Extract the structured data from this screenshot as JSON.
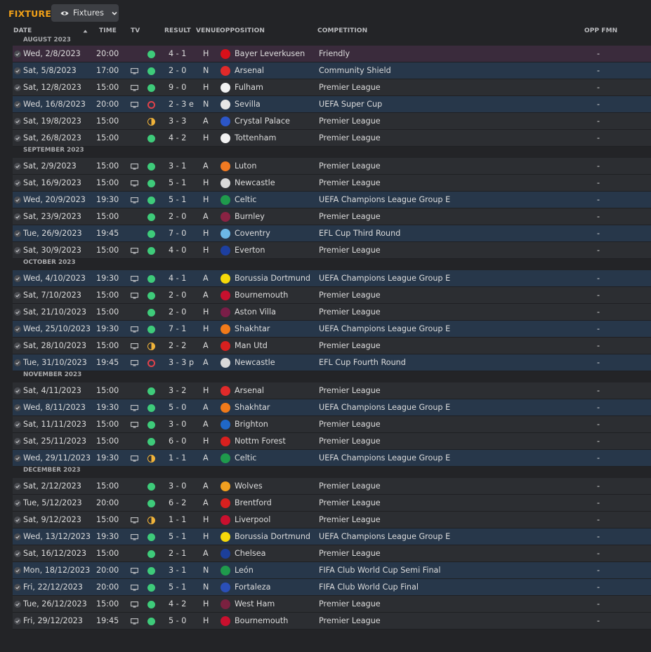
{
  "page": {
    "title": "FIXTURES",
    "view_label": "Fixtures"
  },
  "columns": {
    "date": "DATE",
    "time": "TIME",
    "tv": "TV",
    "result": "RESULT",
    "venue": "VENUE",
    "opposition": "OPPOSITION",
    "competition": "COMPETITION",
    "opp_fmn": "OPP FMN"
  },
  "colors": {
    "accent": "#f0a018",
    "win": "#3ecb7a",
    "draw": "#f0b33a",
    "loss": "#e0424a",
    "row": "#2c2e32",
    "row_competition": "#27374a",
    "row_friendly": "#3a2b3c"
  },
  "months": [
    {
      "label": "AUGUST 2023",
      "fixtures": [
        {
          "date": "Wed, 2/8/2023",
          "time": "20:00",
          "tv": false,
          "outcome": "win",
          "result": "4 - 1",
          "venue": "H",
          "opposition": "Bayer Leverkusen",
          "competition": "Friendly",
          "opp_fmn": "-",
          "style": "friendly",
          "crest": "#d8101a"
        },
        {
          "date": "Sat, 5/8/2023",
          "time": "17:00",
          "tv": true,
          "outcome": "win",
          "result": "2 - 0",
          "venue": "N",
          "opposition": "Arsenal",
          "competition": "Community Shield",
          "opp_fmn": "-",
          "style": "comp",
          "crest": "#e02a2a"
        },
        {
          "date": "Sat, 12/8/2023",
          "time": "15:00",
          "tv": true,
          "outcome": "win",
          "result": "9 - 0",
          "venue": "H",
          "opposition": "Fulham",
          "competition": "Premier League",
          "opp_fmn": "-",
          "style": "league",
          "crest": "#f2f2f2"
        },
        {
          "date": "Wed, 16/8/2023",
          "time": "20:00",
          "tv": true,
          "outcome": "loss",
          "result": "2 - 3 e",
          "venue": "N",
          "opposition": "Sevilla",
          "competition": "UEFA Super Cup",
          "opp_fmn": "-",
          "style": "comp",
          "crest": "#e6e6e6"
        },
        {
          "date": "Sat, 19/8/2023",
          "time": "15:00",
          "tv": false,
          "outcome": "draw",
          "result": "3 - 3",
          "venue": "A",
          "opposition": "Crystal Palace",
          "competition": "Premier League",
          "opp_fmn": "-",
          "style": "league",
          "crest": "#2c56c8"
        },
        {
          "date": "Sat, 26/8/2023",
          "time": "15:00",
          "tv": false,
          "outcome": "win",
          "result": "4 - 2",
          "venue": "H",
          "opposition": "Tottenham",
          "competition": "Premier League",
          "opp_fmn": "-",
          "style": "league",
          "crest": "#f2f2f2"
        }
      ]
    },
    {
      "label": "SEPTEMBER 2023",
      "fixtures": [
        {
          "date": "Sat, 2/9/2023",
          "time": "15:00",
          "tv": true,
          "outcome": "win",
          "result": "3 - 1",
          "venue": "A",
          "opposition": "Luton",
          "competition": "Premier League",
          "opp_fmn": "-",
          "style": "league",
          "crest": "#f07a22"
        },
        {
          "date": "Sat, 16/9/2023",
          "time": "15:00",
          "tv": true,
          "outcome": "win",
          "result": "5 - 1",
          "venue": "H",
          "opposition": "Newcastle",
          "competition": "Premier League",
          "opp_fmn": "-",
          "style": "league",
          "crest": "#d9d9d9"
        },
        {
          "date": "Wed, 20/9/2023",
          "time": "19:30",
          "tv": true,
          "outcome": "win",
          "result": "5 - 1",
          "venue": "H",
          "opposition": "Celtic",
          "competition": "UEFA Champions League Group E",
          "opp_fmn": "-",
          "style": "comp",
          "crest": "#1f9a4c"
        },
        {
          "date": "Sat, 23/9/2023",
          "time": "15:00",
          "tv": false,
          "outcome": "win",
          "result": "2 - 0",
          "venue": "A",
          "opposition": "Burnley",
          "competition": "Premier League",
          "opp_fmn": "-",
          "style": "league",
          "crest": "#8a2343"
        },
        {
          "date": "Tue, 26/9/2023",
          "time": "19:45",
          "tv": false,
          "outcome": "win",
          "result": "7 - 0",
          "venue": "H",
          "opposition": "Coventry",
          "competition": "EFL Cup Third Round",
          "opp_fmn": "-",
          "style": "comp",
          "crest": "#6cb8e6"
        },
        {
          "date": "Sat, 30/9/2023",
          "time": "15:00",
          "tv": true,
          "outcome": "win",
          "result": "4 - 0",
          "venue": "H",
          "opposition": "Everton",
          "competition": "Premier League",
          "opp_fmn": "-",
          "style": "league",
          "crest": "#1d3fa0"
        }
      ]
    },
    {
      "label": "OCTOBER 2023",
      "fixtures": [
        {
          "date": "Wed, 4/10/2023",
          "time": "19:30",
          "tv": true,
          "outcome": "win",
          "result": "4 - 1",
          "venue": "A",
          "opposition": "Borussia Dortmund",
          "competition": "UEFA Champions League Group E",
          "opp_fmn": "-",
          "style": "comp",
          "crest": "#f5d90a"
        },
        {
          "date": "Sat, 7/10/2023",
          "time": "15:00",
          "tv": true,
          "outcome": "win",
          "result": "2 - 0",
          "venue": "A",
          "opposition": "Bournemouth",
          "competition": "Premier League",
          "opp_fmn": "-",
          "style": "league",
          "crest": "#c8102e"
        },
        {
          "date": "Sat, 21/10/2023",
          "time": "15:00",
          "tv": false,
          "outcome": "win",
          "result": "2 - 0",
          "venue": "H",
          "opposition": "Aston Villa",
          "competition": "Premier League",
          "opp_fmn": "-",
          "style": "league",
          "crest": "#7a1e48"
        },
        {
          "date": "Wed, 25/10/2023",
          "time": "19:30",
          "tv": true,
          "outcome": "win",
          "result": "7 - 1",
          "venue": "H",
          "opposition": "Shakhtar",
          "competition": "UEFA Champions League Group E",
          "opp_fmn": "-",
          "style": "comp",
          "crest": "#f07a1a"
        },
        {
          "date": "Sat, 28/10/2023",
          "time": "15:00",
          "tv": true,
          "outcome": "draw",
          "result": "2 - 2",
          "venue": "A",
          "opposition": "Man Utd",
          "competition": "Premier League",
          "opp_fmn": "-",
          "style": "league",
          "crest": "#d8201f"
        },
        {
          "date": "Tue, 31/10/2023",
          "time": "19:45",
          "tv": true,
          "outcome": "loss",
          "result": "3 - 3 p",
          "venue": "A",
          "opposition": "Newcastle",
          "competition": "EFL Cup Fourth Round",
          "opp_fmn": "-",
          "style": "comp",
          "crest": "#d9d9d9"
        }
      ]
    },
    {
      "label": "NOVEMBER 2023",
      "fixtures": [
        {
          "date": "Sat, 4/11/2023",
          "time": "15:00",
          "tv": false,
          "outcome": "win",
          "result": "3 - 2",
          "venue": "H",
          "opposition": "Arsenal",
          "competition": "Premier League",
          "opp_fmn": "-",
          "style": "league",
          "crest": "#e02a2a"
        },
        {
          "date": "Wed, 8/11/2023",
          "time": "19:30",
          "tv": true,
          "outcome": "win",
          "result": "5 - 0",
          "venue": "A",
          "opposition": "Shakhtar",
          "competition": "UEFA Champions League Group E",
          "opp_fmn": "-",
          "style": "comp",
          "crest": "#f07a1a"
        },
        {
          "date": "Sat, 11/11/2023",
          "time": "15:00",
          "tv": true,
          "outcome": "win",
          "result": "3 - 0",
          "venue": "A",
          "opposition": "Brighton",
          "competition": "Premier League",
          "opp_fmn": "-",
          "style": "league",
          "crest": "#1f67c8"
        },
        {
          "date": "Sat, 25/11/2023",
          "time": "15:00",
          "tv": false,
          "outcome": "win",
          "result": "6 - 0",
          "venue": "H",
          "opposition": "Nottm Forest",
          "competition": "Premier League",
          "opp_fmn": "-",
          "style": "league",
          "crest": "#d8201f"
        },
        {
          "date": "Wed, 29/11/2023",
          "time": "19:30",
          "tv": true,
          "outcome": "draw",
          "result": "1 - 1",
          "venue": "A",
          "opposition": "Celtic",
          "competition": "UEFA Champions League Group E",
          "opp_fmn": "-",
          "style": "comp",
          "crest": "#1f9a4c"
        }
      ]
    },
    {
      "label": "DECEMBER 2023",
      "fixtures": [
        {
          "date": "Sat, 2/12/2023",
          "time": "15:00",
          "tv": false,
          "outcome": "win",
          "result": "3 - 0",
          "venue": "A",
          "opposition": "Wolves",
          "competition": "Premier League",
          "opp_fmn": "-",
          "style": "league",
          "crest": "#f0a020"
        },
        {
          "date": "Tue, 5/12/2023",
          "time": "20:00",
          "tv": false,
          "outcome": "win",
          "result": "6 - 2",
          "venue": "A",
          "opposition": "Brentford",
          "competition": "Premier League",
          "opp_fmn": "-",
          "style": "league",
          "crest": "#d8201f"
        },
        {
          "date": "Sat, 9/12/2023",
          "time": "15:00",
          "tv": true,
          "outcome": "draw",
          "result": "1 - 1",
          "venue": "H",
          "opposition": "Liverpool",
          "competition": "Premier League",
          "opp_fmn": "-",
          "style": "league",
          "crest": "#c8102e"
        },
        {
          "date": "Wed, 13/12/2023",
          "time": "19:30",
          "tv": true,
          "outcome": "win",
          "result": "5 - 1",
          "venue": "H",
          "opposition": "Borussia Dortmund",
          "competition": "UEFA Champions League Group E",
          "opp_fmn": "-",
          "style": "comp",
          "crest": "#f5d90a"
        },
        {
          "date": "Sat, 16/12/2023",
          "time": "15:00",
          "tv": false,
          "outcome": "win",
          "result": "2 - 1",
          "venue": "A",
          "opposition": "Chelsea",
          "competition": "Premier League",
          "opp_fmn": "-",
          "style": "league",
          "crest": "#1c3f9a"
        },
        {
          "date": "Mon, 18/12/2023",
          "time": "20:00",
          "tv": true,
          "outcome": "win",
          "result": "3 - 1",
          "venue": "N",
          "opposition": "León",
          "competition": "FIFA Club World Cup Semi Final",
          "opp_fmn": "-",
          "style": "comp",
          "crest": "#1f9a4c"
        },
        {
          "date": "Fri, 22/12/2023",
          "time": "20:00",
          "tv": true,
          "outcome": "win",
          "result": "5 - 1",
          "venue": "N",
          "opposition": "Fortaleza",
          "competition": "FIFA Club World Cup Final",
          "opp_fmn": "-",
          "style": "comp",
          "crest": "#2a4fb8"
        },
        {
          "date": "Tue, 26/12/2023",
          "time": "15:00",
          "tv": true,
          "outcome": "win",
          "result": "4 - 2",
          "venue": "H",
          "opposition": "West Ham",
          "competition": "Premier League",
          "opp_fmn": "-",
          "style": "league",
          "crest": "#7a2140"
        },
        {
          "date": "Fri, 29/12/2023",
          "time": "19:45",
          "tv": true,
          "outcome": "win",
          "result": "5 - 0",
          "venue": "H",
          "opposition": "Bournemouth",
          "competition": "Premier League",
          "opp_fmn": "-",
          "style": "league",
          "crest": "#c8102e"
        }
      ]
    }
  ]
}
